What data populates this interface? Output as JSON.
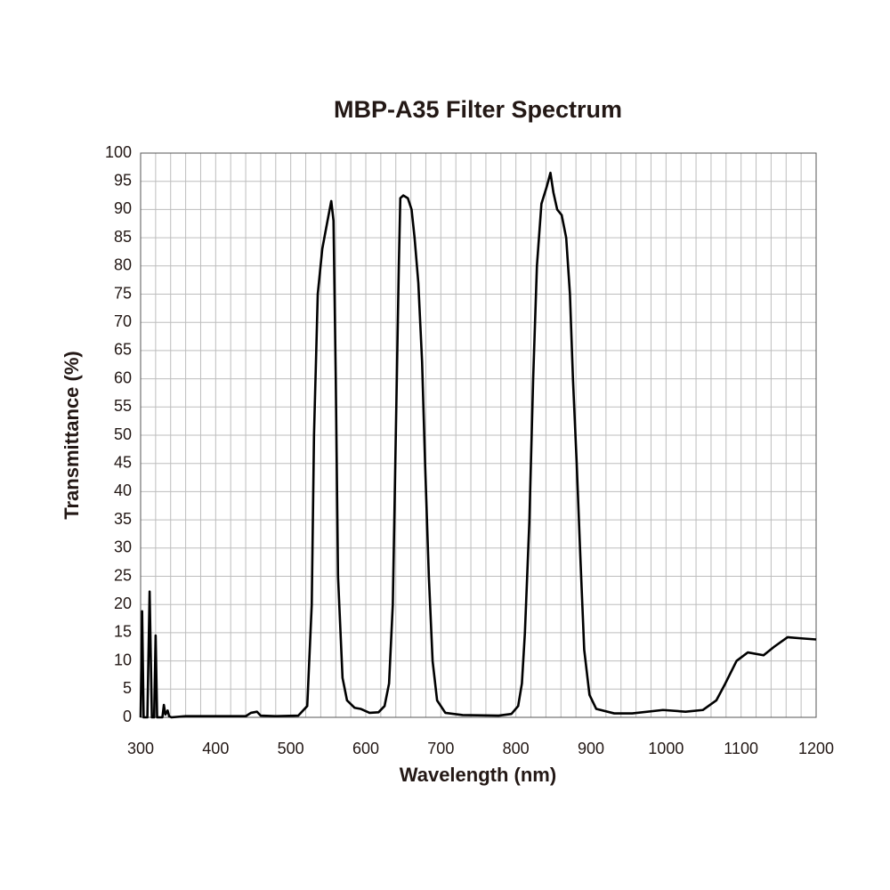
{
  "chart_data": {
    "type": "line",
    "title": "MBP-A35 Filter Spectrum",
    "x_label": "Wavelength (nm)",
    "y_label": "Transmittance (%)",
    "xlim": [
      300,
      1200
    ],
    "ylim": [
      0,
      100
    ],
    "xticks": [
      300,
      400,
      500,
      600,
      700,
      800,
      900,
      1000,
      1100,
      1200
    ],
    "yticks": [
      0,
      5,
      10,
      15,
      20,
      25,
      30,
      35,
      40,
      45,
      50,
      55,
      60,
      65,
      70,
      75,
      80,
      85,
      90,
      95,
      100
    ],
    "x_grid": [
      300,
      320,
      340,
      360,
      380,
      400,
      420,
      440,
      460,
      480,
      500,
      520,
      540,
      560,
      580,
      600,
      620,
      640,
      660,
      680,
      700,
      720,
      740,
      760,
      780,
      800,
      820,
      840,
      860,
      880,
      900,
      920,
      940,
      960,
      980,
      1000,
      1020,
      1040,
      1060,
      1080,
      1100,
      1120,
      1140,
      1160,
      1180,
      1200
    ],
    "grid": true,
    "series": [
      {
        "name": "Transmittance",
        "color": "#000000",
        "x": [
          300,
          302,
          304,
          309,
          312,
          315,
          318,
          320,
          322,
          329,
          331,
          333,
          336,
          338,
          341,
          360,
          400,
          440,
          447,
          451,
          455,
          460,
          480,
          510,
          522,
          528,
          531,
          536,
          542,
          549,
          554,
          557,
          560,
          563,
          569,
          575,
          585,
          593,
          605,
          617,
          625,
          631,
          636,
          640,
          644,
          646,
          650,
          656,
          661,
          665,
          670,
          675,
          679,
          684,
          689,
          695,
          706,
          729,
          777,
          794,
          803,
          808,
          812,
          818,
          823,
          828,
          834,
          841,
          846,
          850,
          855,
          861,
          867,
          872,
          876,
          881,
          886,
          891,
          898,
          907,
          931,
          955,
          996,
          1026,
          1049,
          1067,
          1079,
          1094,
          1109,
          1130,
          1144,
          1162,
          1180,
          1200
        ],
        "values": [
          0,
          18.8,
          0,
          0,
          22.3,
          0,
          0,
          14.5,
          0,
          0,
          2.2,
          0.5,
          1.2,
          0.2,
          0,
          0.2,
          0.2,
          0.2,
          0.8,
          0.9,
          1.0,
          0.3,
          0.2,
          0.3,
          2,
          20,
          50,
          75,
          83,
          88,
          91.5,
          88,
          60,
          25,
          7,
          3,
          1.7,
          1.5,
          0.8,
          0.9,
          2,
          6,
          20,
          50,
          80,
          92,
          92.5,
          92,
          90,
          85,
          77,
          63,
          45,
          25,
          10,
          3,
          0.8,
          0.4,
          0.3,
          0.6,
          2,
          6,
          15,
          35,
          60,
          80,
          91,
          94,
          96.5,
          93,
          90,
          89,
          85,
          75,
          60,
          45,
          28,
          12,
          4,
          1.5,
          0.7,
          0.7,
          1.3,
          1.0,
          1.3,
          3,
          6,
          10,
          11.5,
          11.0,
          12.5,
          14.2,
          14,
          13.8
        ]
      }
    ]
  }
}
